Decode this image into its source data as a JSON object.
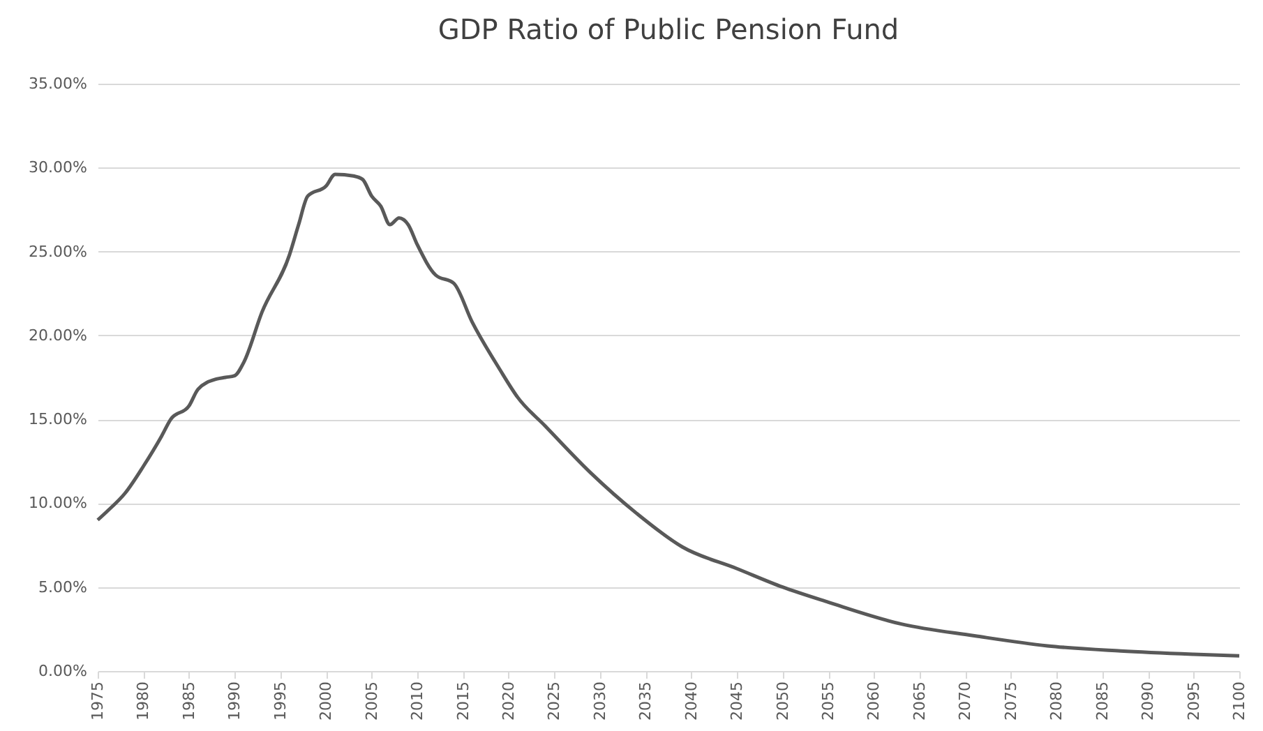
{
  "chart_data": {
    "type": "line",
    "title": "GDP Ratio of Public Pension Fund",
    "x": [
      1975,
      1976,
      1978,
      1980,
      1982,
      1983,
      1985,
      1986,
      1988,
      1989,
      1990,
      1991,
      1993,
      1996,
      1997,
      1998,
      2000,
      2001,
      2003,
      2004,
      2005,
      2006,
      2007,
      2008,
      2009,
      2010,
      2012,
      2014,
      2016,
      2019,
      2021,
      2024,
      2029,
      2034,
      2039,
      2045,
      2050,
      2055,
      2063,
      2071,
      2079,
      2087,
      2095,
      2100
    ],
    "series": [
      {
        "color": "#595959",
        "values": [
          9.0,
          9.5,
          10.6,
          12.2,
          14.0,
          15.0,
          15.8,
          16.8,
          17.4,
          17.5,
          17.6,
          18.4,
          21.4,
          24.8,
          26.6,
          28.3,
          28.9,
          29.6,
          29.5,
          29.3,
          28.3,
          27.7,
          26.6,
          27.0,
          26.6,
          25.4,
          23.6,
          23.1,
          20.8,
          18.0,
          16.3,
          14.6,
          11.8,
          9.4,
          7.4,
          6.1,
          5.0,
          4.1,
          2.8,
          2.1,
          1.5,
          1.2,
          1.0,
          0.9
        ]
      }
    ],
    "xlim": [
      1975,
      2100
    ],
    "xticks": [
      1975,
      1980,
      1985,
      1990,
      1995,
      2000,
      2005,
      2010,
      2015,
      2020,
      2025,
      2030,
      2035,
      2040,
      2045,
      2050,
      2055,
      2060,
      2065,
      2070,
      2075,
      2080,
      2085,
      2090,
      2095,
      2100
    ],
    "ylim": [
      0,
      35
    ],
    "yticks": [
      {
        "value": 0,
        "label": "0.00%"
      },
      {
        "value": 5,
        "label": "5.00%"
      },
      {
        "value": 10,
        "label": "10.00%"
      },
      {
        "value": 15,
        "label": "15.00%"
      },
      {
        "value": 20,
        "label": "20.00%"
      },
      {
        "value": 25,
        "label": "25.00%"
      },
      {
        "value": 30,
        "label": "30.00%"
      },
      {
        "value": 35,
        "label": "35.00%"
      }
    ],
    "grid": "y",
    "marker": "none",
    "line_style": "solid"
  }
}
